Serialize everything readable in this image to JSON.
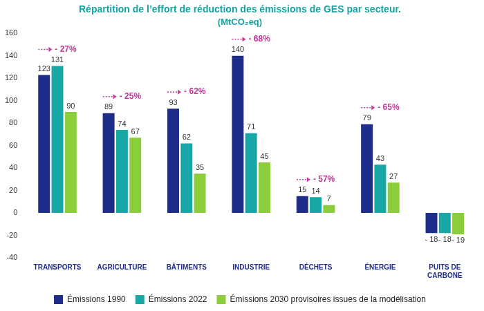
{
  "chart_data": {
    "type": "bar",
    "title": "Répartition de l’effort de réduction des émissions de GES par secteur.",
    "subtitle": "(MtCO₂eq)",
    "categories": [
      "TRANSPORTS",
      "AGRICULTURE",
      "BÂTIMENTS",
      "INDUSTRIE",
      "DÉCHETS",
      "ÉNERGIE",
      "PUITS DE CARBONE"
    ],
    "series": [
      {
        "name": "Émissions 1990",
        "color": "#1f2d8a",
        "values": [
          123,
          89,
          93,
          140,
          15,
          79,
          -18
        ],
        "value_labels": [
          "123",
          "89",
          "93",
          "140",
          "15",
          "79",
          "- 18"
        ]
      },
      {
        "name": "Émissions 2022",
        "color": "#17a7a6",
        "values": [
          131,
          74,
          62,
          71,
          14,
          43,
          -18
        ],
        "value_labels": [
          "131",
          "74",
          "62",
          "71",
          "14",
          "43",
          "- 18"
        ]
      },
      {
        "name": "Émissions 2030 provisoires issues de la modélisation",
        "color": "#8ccd3c",
        "values": [
          90,
          67,
          35,
          45,
          7,
          27,
          -19
        ],
        "value_labels": [
          "90",
          "67",
          "35",
          "45",
          "7",
          "27",
          "- 19"
        ]
      }
    ],
    "annotations": [
      {
        "category": "TRANSPORTS",
        "text": "- 27%"
      },
      {
        "category": "AGRICULTURE",
        "text": "- 25%"
      },
      {
        "category": "BÂTIMENTS",
        "text": "- 62%"
      },
      {
        "category": "INDUSTRIE",
        "text": "- 68%"
      },
      {
        "category": "DÉCHETS",
        "text": "- 57%"
      },
      {
        "category": "ÉNERGIE",
        "text": "- 65%"
      }
    ],
    "ylim": [
      -40,
      160
    ],
    "yticks": [
      -40,
      -20,
      0,
      20,
      40,
      60,
      80,
      100,
      120,
      140,
      160
    ],
    "grid": false,
    "legend": "bottom",
    "data_labels": true
  }
}
